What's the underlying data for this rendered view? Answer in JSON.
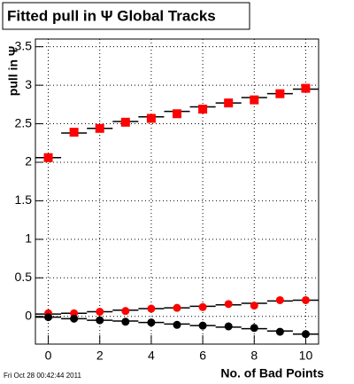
{
  "chart_data": {
    "type": "scatter",
    "title": "Fitted pull in  Ψ   Global Tracks",
    "y_label": "pull in Ψ",
    "x_label": "No. of Bad Points",
    "footer": "Fri Oct 28 00:42:44 2011",
    "x": [
      0,
      1,
      2,
      3,
      4,
      5,
      6,
      7,
      8,
      9,
      10
    ],
    "xlim": [
      -0.5,
      10.5
    ],
    "ylim": [
      -0.36,
      3.6
    ],
    "xticks": [
      0,
      2,
      4,
      6,
      8,
      10
    ],
    "yticks": [
      0,
      0.5,
      1,
      1.5,
      2,
      2.5,
      3,
      3.5
    ],
    "grid": true,
    "series": [
      {
        "marker": "step",
        "color": "#000000",
        "values": [
          2.06,
          2.38,
          2.44,
          2.53,
          2.59,
          2.66,
          2.72,
          2.77,
          2.84,
          2.89,
          2.95
        ]
      },
      {
        "marker": "square",
        "color": "#ff0000",
        "values": [
          2.06,
          2.39,
          2.44,
          2.52,
          2.57,
          2.63,
          2.69,
          2.77,
          2.81,
          2.89,
          2.96
        ]
      },
      {
        "marker": "step",
        "color": "#000000",
        "values": [
          0.03,
          0.04,
          0.06,
          0.08,
          0.1,
          0.11,
          0.13,
          0.15,
          0.17,
          0.2,
          0.21
        ]
      },
      {
        "marker": "circle",
        "color": "#ff0000",
        "values": [
          0.04,
          0.04,
          0.06,
          0.07,
          0.1,
          0.11,
          0.12,
          0.16,
          0.14,
          0.21,
          0.21
        ]
      },
      {
        "marker": "step",
        "color": "#000000",
        "values": [
          -0.01,
          -0.03,
          -0.05,
          -0.06,
          -0.08,
          -0.1,
          -0.12,
          -0.14,
          -0.16,
          -0.19,
          -0.23
        ]
      },
      {
        "marker": "circle",
        "color": "#000000",
        "values": [
          -0.01,
          -0.03,
          -0.05,
          -0.07,
          -0.08,
          -0.11,
          -0.12,
          -0.13,
          -0.15,
          -0.2,
          -0.23
        ]
      }
    ]
  }
}
